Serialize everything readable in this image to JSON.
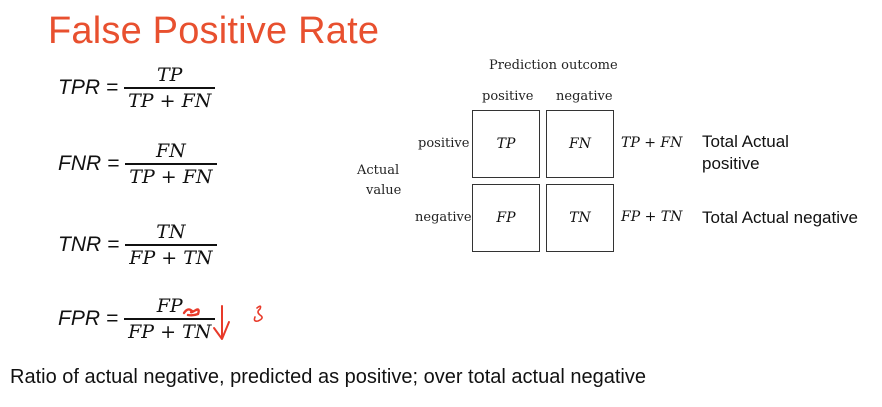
{
  "title": "False Positive Rate",
  "formulas": {
    "tpr": {
      "lhs": "TPR =",
      "num": "TP",
      "den": "TP + FN"
    },
    "fnr": {
      "lhs": "FNR =",
      "num": "FN",
      "den": "TP + FN"
    },
    "tnr": {
      "lhs": "TNR =",
      "num": "TN",
      "den": "FP + TN"
    },
    "fpr": {
      "lhs": "FPR =",
      "num": "FP",
      "den": "FP + TN"
    }
  },
  "matrix": {
    "header": "Prediction outcome",
    "col_positive": "positive",
    "col_negative": "negative",
    "row_label_line1": "Actual",
    "row_label_line2": "value",
    "row_positive": "positive",
    "row_negative": "negative",
    "cells": {
      "tp": "TP",
      "fn": "FN",
      "fp": "FP",
      "tn": "TN"
    },
    "row_sum_positive": "TP + FN",
    "row_sum_negative": "FP + TN"
  },
  "totals": {
    "positive_line1": "Total Actual",
    "positive_line2": "positive",
    "negative": "Total Actual negative"
  },
  "caption": "Ratio of actual negative, predicted as positive; over total actual negative",
  "colors": {
    "title": "#e8502f",
    "ink": "#e83a2a"
  }
}
